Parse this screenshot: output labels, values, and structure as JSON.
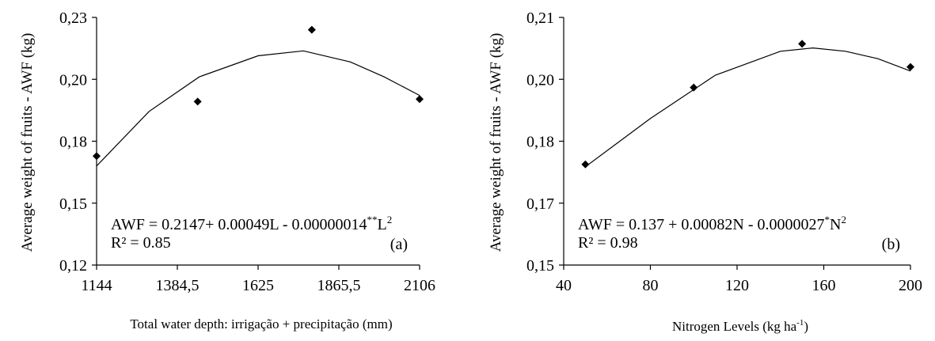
{
  "chart_data": [
    {
      "type": "scatter",
      "panel_label": "(a)",
      "ylabel": "Average weight of fruits - AWF (kg)",
      "xlabel": "Total water depth: irrigação + precipitação (mm)",
      "x_ticks": [
        "1144",
        "1384,5",
        "1625",
        "1865,5",
        "2106"
      ],
      "x_tick_values": [
        1144,
        1384.5,
        1625,
        1865.5,
        2106
      ],
      "y_ticks": [
        "0,12",
        "0,15",
        "0,18",
        "0,20",
        "0,23"
      ],
      "y_tick_values": [
        0.12,
        0.145,
        0.17,
        0.195,
        0.22
      ],
      "xlim": [
        1144,
        2106
      ],
      "ylim": [
        0.12,
        0.22
      ],
      "points": [
        {
          "x": 1144,
          "y": 0.164
        },
        {
          "x": 1445,
          "y": 0.186
        },
        {
          "x": 1785,
          "y": 0.215
        },
        {
          "x": 2106,
          "y": 0.187
        }
      ],
      "equation": {
        "prefix": "AWF = 0.2147+ 0.00049L - 0.00000014",
        "sup1": "**",
        "mid": "L",
        "sup2": "2"
      },
      "r2": "R² = 0.85",
      "trend": [
        [
          1144,
          0.16
        ],
        [
          1300,
          0.182
        ],
        [
          1450,
          0.196
        ],
        [
          1625,
          0.2045
        ],
        [
          1760,
          0.2065
        ],
        [
          1900,
          0.202
        ],
        [
          2000,
          0.196
        ],
        [
          2106,
          0.1885
        ]
      ]
    },
    {
      "type": "scatter",
      "panel_label": "(b)",
      "ylabel": "Average weight of fruits - AWF (kg)",
      "xlabel_main": "Nitrogen Levels (kg ha",
      "xlabel_sup": "-1",
      "xlabel_end": ")",
      "x_ticks": [
        "40",
        "80",
        "120",
        "160",
        "200"
      ],
      "x_tick_values": [
        40,
        80,
        120,
        160,
        200
      ],
      "y_ticks": [
        "0,15",
        "0,17",
        "0,18",
        "0,20",
        "0,21"
      ],
      "y_tick_values": [
        0.15,
        0.165,
        0.18,
        0.195,
        0.21
      ],
      "xlim": [
        40,
        200
      ],
      "ylim": [
        0.15,
        0.21
      ],
      "points": [
        {
          "x": 50,
          "y": 0.1744
        },
        {
          "x": 100,
          "y": 0.193
        },
        {
          "x": 150,
          "y": 0.2036
        },
        {
          "x": 200,
          "y": 0.198
        }
      ],
      "equation": {
        "prefix": "AWF = 0.137 + 0.00082N - 0.0000027",
        "sup1": "*",
        "mid": "N",
        "sup2": "2"
      },
      "r2": "R² = 0.98",
      "trend": [
        [
          50,
          0.1738
        ],
        [
          80,
          0.1855
        ],
        [
          110,
          0.196
        ],
        [
          140,
          0.2018
        ],
        [
          155,
          0.2026
        ],
        [
          170,
          0.2018
        ],
        [
          185,
          0.2
        ],
        [
          200,
          0.197
        ]
      ]
    }
  ]
}
